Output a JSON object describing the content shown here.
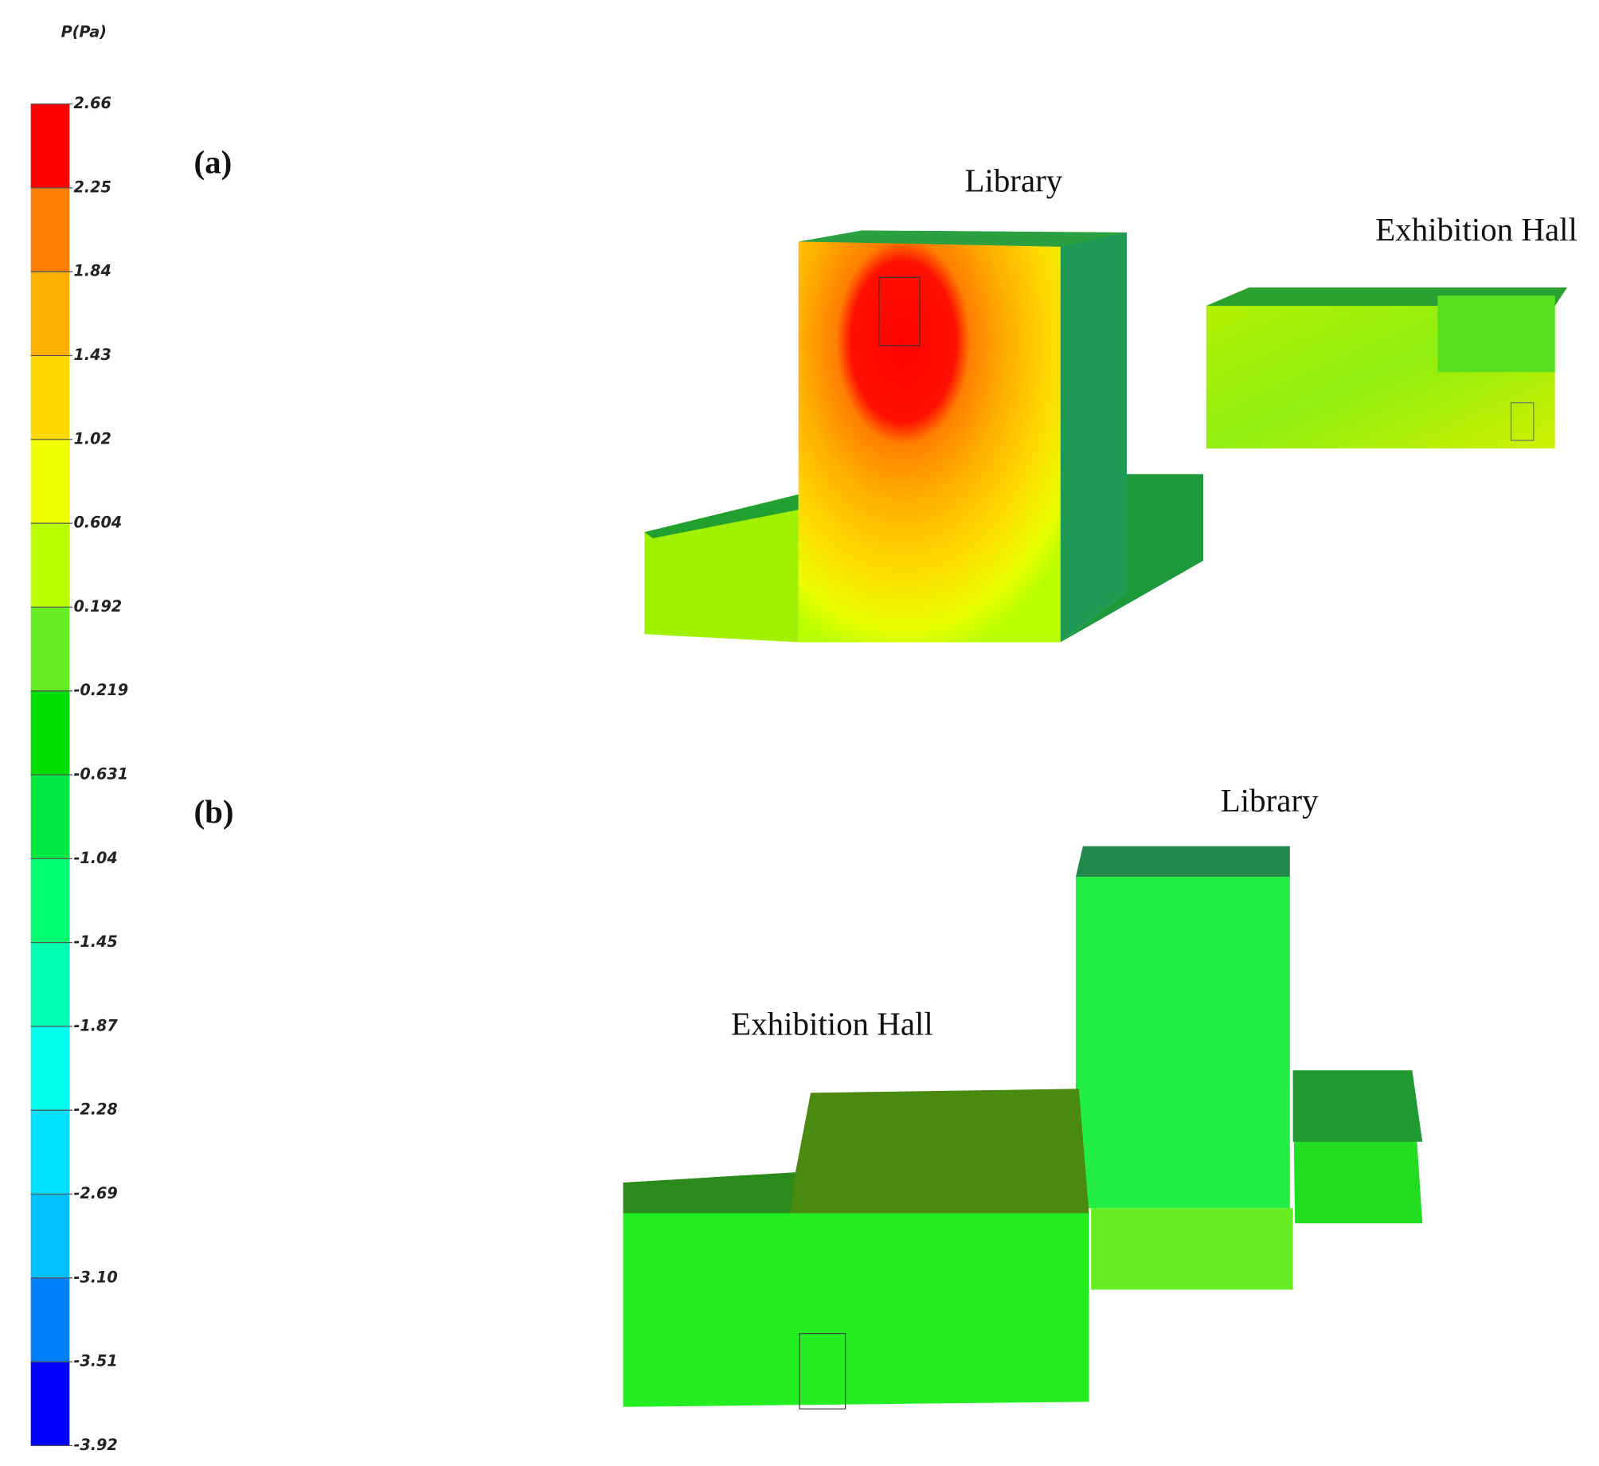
{
  "legend": {
    "title": "P(Pa)",
    "ticks": [
      "2.66",
      "2.25",
      "1.84",
      "1.43",
      "1.02",
      "0.604",
      "0.192",
      "-0.219",
      "-0.631",
      "-1.04",
      "-1.45",
      "-1.87",
      "-2.28",
      "-2.69",
      "-3.10",
      "-3.51",
      "-3.92"
    ],
    "band_colors": [
      "#ff0000",
      "#ff8000",
      "#ffb000",
      "#ffd800",
      "#f0ff00",
      "#b8ff00",
      "#66ee22",
      "#00dd00",
      "#00e844",
      "#00ff70",
      "#00ffb0",
      "#00ffee",
      "#00e0ff",
      "#00c0ff",
      "#0080ff",
      "#0000ff"
    ]
  },
  "panels": [
    {
      "label": "(a)",
      "buildings": [
        "Library",
        "Exhibition Hall"
      ]
    },
    {
      "label": "(b)",
      "buildings": [
        "Library",
        "Exhibition Hall"
      ]
    }
  ]
}
